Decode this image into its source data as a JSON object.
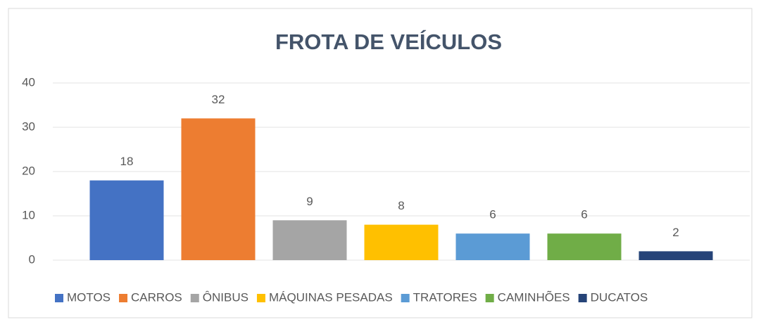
{
  "chart_data": {
    "type": "bar",
    "title": "FROTA DE VEÍCULOS",
    "categories": [
      null
    ],
    "series": [
      {
        "name": "MOTOS",
        "color": "#4472c4",
        "values": [
          18
        ]
      },
      {
        "name": "CARROS",
        "color": "#ed7d31",
        "values": [
          32
        ]
      },
      {
        "name": "ÔNIBUS",
        "color": "#a5a5a5",
        "values": [
          9
        ]
      },
      {
        "name": "MÁQUINAS PESADAS",
        "color": "#ffc000",
        "values": [
          8
        ]
      },
      {
        "name": "TRATORES",
        "color": "#5b9bd5",
        "values": [
          6
        ]
      },
      {
        "name": "CAMINHÕES",
        "color": "#70ad47",
        "values": [
          6
        ]
      },
      {
        "name": "DUCATOS",
        "color": "#264478",
        "values": [
          2
        ]
      }
    ],
    "ylim": [
      0,
      40
    ],
    "yticks": [
      0,
      10,
      20,
      30,
      40
    ],
    "grid": true,
    "legend": "bottom"
  }
}
